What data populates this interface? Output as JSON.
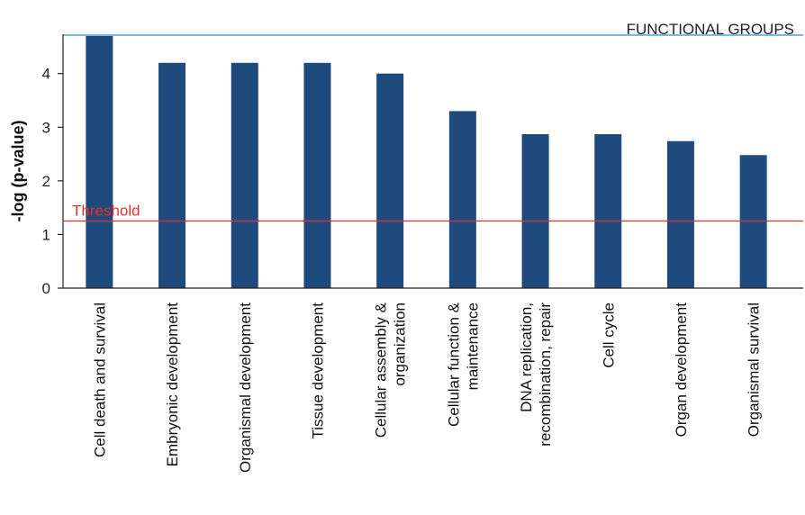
{
  "chart_data": {
    "type": "bar",
    "title": "FUNCTIONAL GROUPS",
    "xlabel": "",
    "ylabel": "-log (p-value)",
    "ylim": [
      0,
      4.7
    ],
    "yticks": [
      0,
      1,
      2,
      3,
      4
    ],
    "grid": false,
    "categories": [
      "Cell death and survival",
      "Embryonic development",
      "Organismal development",
      "Tissue development",
      "Cellular assembly & organization",
      "Cellular function & maintenance",
      "DNA replication, recombination, repair",
      "Cell cycle",
      "Organ development",
      "Organismal survival"
    ],
    "category_label_lines": [
      [
        "Cell death and survival"
      ],
      [
        "Embryonic development"
      ],
      [
        "Organismal development"
      ],
      [
        "Tissue development"
      ],
      [
        "Cellular assembly &",
        "organization"
      ],
      [
        "Cellular function &",
        "maintenance"
      ],
      [
        "DNA replication,",
        "recombination, repair"
      ],
      [
        "Cell cycle"
      ],
      [
        "Organ development"
      ],
      [
        "Organismal survival"
      ]
    ],
    "values": [
      4.7,
      4.2,
      4.2,
      4.2,
      4.0,
      3.3,
      2.87,
      2.87,
      2.74,
      2.48
    ],
    "threshold": {
      "label": "Threshold",
      "value": 1.25
    },
    "colors": {
      "bar": "#1f4a7e",
      "threshold": "#e8302a",
      "top_rule": "#4aa3d8",
      "axis": "#222222"
    }
  }
}
